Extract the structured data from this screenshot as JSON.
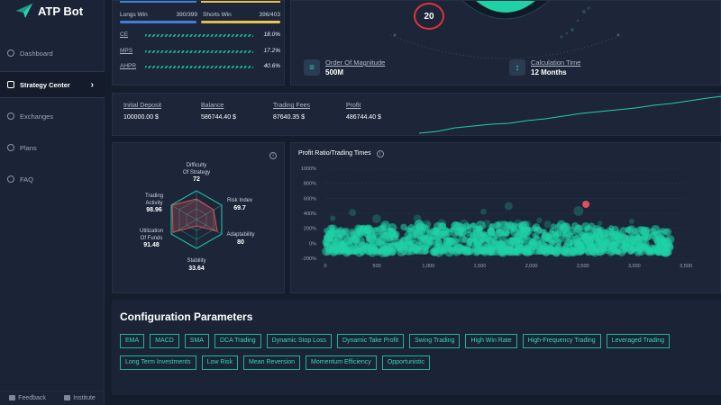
{
  "app": {
    "name": "ATP Bot"
  },
  "sidebar": {
    "items": [
      {
        "label": "Dashboard",
        "active": false
      },
      {
        "label": "Strategy Center",
        "active": true
      },
      {
        "label": "Exchanges",
        "active": false
      },
      {
        "label": "Plans",
        "active": false
      },
      {
        "label": "FAQ",
        "active": false
      }
    ],
    "footer": {
      "feedback": "Feedback",
      "institute": "Institute"
    }
  },
  "winloss": {
    "longs_label": "Longs Win",
    "longs_value": "390/399",
    "shorts_label": "Shorts Win",
    "shorts_value": "396/403",
    "metrics": [
      {
        "label": "CE",
        "value": "18.0%"
      },
      {
        "label": "MPS",
        "value": "17.2%"
      },
      {
        "label": "AHPR",
        "value": "40.6%"
      }
    ]
  },
  "gauge": {
    "badge": "20",
    "magnitude_label": "Order Of Magnitude",
    "magnitude_value": "500M",
    "calc_label": "Calculation Time",
    "calc_value": "12 Months"
  },
  "stats": [
    {
      "label": "Initial Deposit",
      "value": "100000.00 $"
    },
    {
      "label": "Balance",
      "value": "586744.40 $"
    },
    {
      "label": "Trading Fees",
      "value": "87640.35 $"
    },
    {
      "label": "Profit",
      "value": "486744.40 $"
    }
  ],
  "radar": {
    "axes": [
      {
        "name": "Difficulty Of Strategy",
        "l1": "Difficulty",
        "l2": "Of Strategy",
        "value": "72"
      },
      {
        "name": "Risk Index",
        "l1": "Risk Index",
        "l2": "",
        "value": "69.7"
      },
      {
        "name": "Adaptability",
        "l1": "Adaptability",
        "l2": "",
        "value": "80"
      },
      {
        "name": "Stability",
        "l1": "Stability",
        "l2": "",
        "value": "33.64"
      },
      {
        "name": "Utilization Of Funds",
        "l1": "Utilization",
        "l2": "Of Funds",
        "value": "91.48"
      },
      {
        "name": "Trading Activity",
        "l1": "Trading",
        "l2": "Activity",
        "value": "98.96"
      }
    ]
  },
  "chart_data": {
    "type": "scatter",
    "title": "Profit Ratio/Trading Times",
    "xlabel": "",
    "ylabel": "",
    "xlim": [
      0,
      3500
    ],
    "ylim": [
      -200,
      1000
    ],
    "xticks": [
      "0",
      "500",
      "1,000",
      "1,500",
      "2,000",
      "2,500",
      "3,000",
      "3,500"
    ],
    "yticks": [
      "1000%",
      "800%",
      "600%",
      "400%",
      "200%",
      "0%",
      "-200%"
    ],
    "highlight": {
      "x": 2530,
      "y": 520
    },
    "colors": {
      "points": "#1fd1a6",
      "highlight": "#e0505a"
    }
  },
  "config": {
    "title": "Configuration Parameters",
    "tags": [
      "EMA",
      "MACD",
      "SMA",
      "DCA Trading",
      "Dynamic Stop Loss",
      "Dynamic Take Profit",
      "Swing Trading",
      "High Win Rate",
      "High-Frequency Trading",
      "Leveraged Trading",
      "Long Term Investments",
      "Low Risk",
      "Mean Reversion",
      "Momentum Efficiency",
      "Opportunistic"
    ]
  }
}
